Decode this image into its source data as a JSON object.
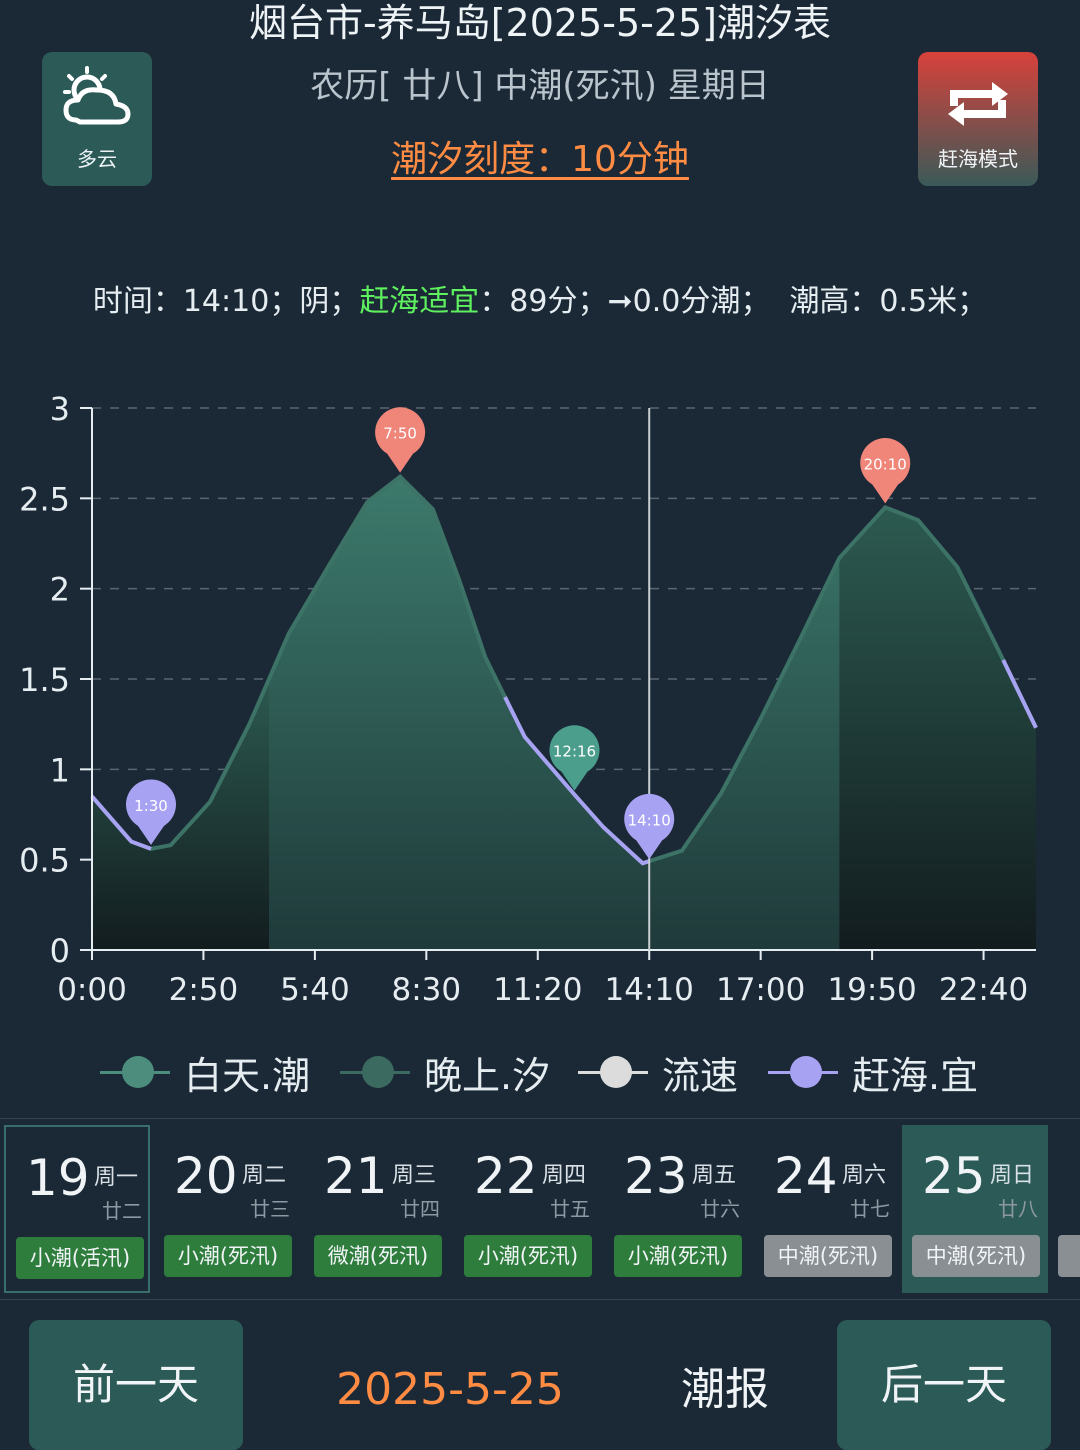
{
  "header": {
    "title": "烟台市-养马岛[2025-5-25]潮汐表",
    "subtitle": "农历[ 廿八] 中潮(死汛) 星期日",
    "scale_text": "潮汐刻度：10分钟"
  },
  "weather": {
    "label": "多云",
    "icon": "cloud-sun-icon"
  },
  "mode_button": {
    "label": "赶海模式",
    "icon": "repeat-icon"
  },
  "status": {
    "time_label": "时间：",
    "time": "14:10",
    "weather": "阴；",
    "suitable_label": "赶海适宜",
    "score": "：89分；",
    "flow": "➞0.0分潮；",
    "height": "潮高：0.5米；"
  },
  "chart_data": {
    "type": "area",
    "x_unit": "time",
    "x_ticks": [
      "0:00",
      "2:50",
      "5:40",
      "8:30",
      "11:20",
      "14:10",
      "17:00",
      "19:50",
      "22:40"
    ],
    "y_ticks": [
      "0",
      "0.5",
      "1",
      "1.5",
      "2",
      "2.5",
      "3"
    ],
    "ylim": [
      0,
      3
    ],
    "xlim_minutes": [
      0,
      1440
    ],
    "points_minutes": [
      0,
      60,
      90,
      120,
      180,
      240,
      300,
      360,
      420,
      470,
      520,
      560,
      600,
      660,
      736,
      780,
      840,
      900,
      960,
      1020,
      1080,
      1140,
      1210,
      1260,
      1320,
      1380,
      1440
    ],
    "heights": [
      0.85,
      0.6,
      0.56,
      0.58,
      0.82,
      1.25,
      1.75,
      2.12,
      2.48,
      2.62,
      2.44,
      2.05,
      1.62,
      1.18,
      0.86,
      0.68,
      0.48,
      0.55,
      0.87,
      1.28,
      1.72,
      2.17,
      2.45,
      2.38,
      2.12,
      1.68,
      1.23
    ],
    "night_ranges_minutes": [
      [
        0,
        270
      ],
      [
        1140,
        1440
      ]
    ],
    "gather_ranges_minutes": [
      [
        0,
        90
      ],
      [
        630,
        850
      ],
      [
        1390,
        1440
      ]
    ],
    "markers": [
      {
        "label": "1:30",
        "minute": 90,
        "height": 0.56,
        "kind": "gather"
      },
      {
        "label": "7:50",
        "minute": 470,
        "height": 2.62,
        "kind": "high"
      },
      {
        "label": "12:16",
        "minute": 736,
        "height": 0.86,
        "kind": "tide"
      },
      {
        "label": "14:10",
        "minute": 850,
        "height": 0.48,
        "kind": "gather"
      },
      {
        "label": "20:10",
        "minute": 1210,
        "height": 2.45,
        "kind": "high"
      }
    ],
    "current_minute": 850,
    "grid": true,
    "colors": {
      "area": "#3a7a6e",
      "line": "#3d7366",
      "gather": "#a8a2f2",
      "high": "#f0857a",
      "tide": "#4c9e8c",
      "cursor": "#c8ced2"
    }
  },
  "legend": [
    {
      "label": "白天.潮",
      "color": "#4c8d7e"
    },
    {
      "label": "晚上.汐",
      "color": "#3a6a60"
    },
    {
      "label": "流速",
      "color": "#dcdcdc"
    },
    {
      "label": "赶海.宜",
      "color": "#a8a2f2"
    }
  ],
  "days": [
    {
      "day": "19",
      "weekday": "周一",
      "lunar": "廿二",
      "tag": "小潮(活汛)",
      "tag_color": "green"
    },
    {
      "day": "20",
      "weekday": "周二",
      "lunar": "廿三",
      "tag": "小潮(死汛)",
      "tag_color": "green"
    },
    {
      "day": "21",
      "weekday": "周三",
      "lunar": "廿四",
      "tag": "微潮(死汛)",
      "tag_color": "green"
    },
    {
      "day": "22",
      "weekday": "周四",
      "lunar": "廿五",
      "tag": "小潮(死汛)",
      "tag_color": "green"
    },
    {
      "day": "23",
      "weekday": "周五",
      "lunar": "廿六",
      "tag": "小潮(死汛)",
      "tag_color": "green"
    },
    {
      "day": "24",
      "weekday": "周六",
      "lunar": "廿七",
      "tag": "中潮(死汛)",
      "tag_color": "grey"
    },
    {
      "day": "25",
      "weekday": "周日",
      "lunar": "廿八",
      "tag": "中潮(死汛)",
      "tag_color": "grey"
    }
  ],
  "footer": {
    "prev_label": "前一天",
    "date": "2025-5-25",
    "report_label": "潮报",
    "next_label": "后一天"
  }
}
